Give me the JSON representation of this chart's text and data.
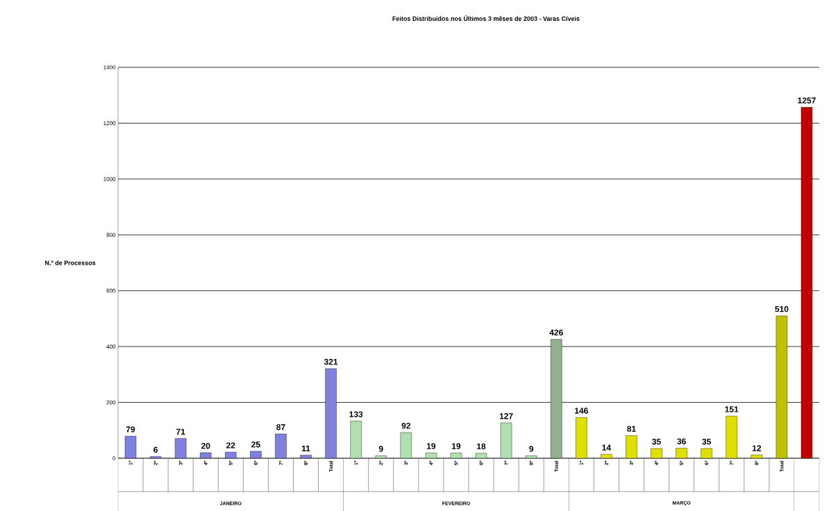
{
  "chart_data": {
    "type": "bar",
    "title": "Feitos Distribuidos nos Últimos 3 mêses de 2003 - Varas Cíveis",
    "ylabel": "N.º de Processos",
    "categories": [
      "1ª",
      "2ª",
      "3ª",
      "4ª",
      "5ª",
      "6ª",
      "7ª",
      "8ª",
      "Total",
      "1ª",
      "2ª",
      "3ª",
      "4ª",
      "5ª",
      "6ª",
      "7ª",
      "8ª",
      "Total",
      "1ª",
      "2ª",
      "3ª",
      "4ª",
      "5ª",
      "6ª",
      "7ª",
      "8ª",
      "Total",
      null
    ],
    "values": [
      79,
      6,
      71,
      20,
      22,
      25,
      87,
      11,
      321,
      133,
      9,
      92,
      19,
      19,
      18,
      127,
      9,
      426,
      146,
      14,
      81,
      35,
      36,
      35,
      151,
      12,
      510,
      1257
    ],
    "colors": [
      "#8080e0",
      "#8080e0",
      "#8080e0",
      "#8080e0",
      "#8080e0",
      "#8080e0",
      "#8080e0",
      "#8080e0",
      "#8080e0",
      "#b0e0b0",
      "#b0e0b0",
      "#b0e0b0",
      "#b0e0b0",
      "#b0e0b0",
      "#b0e0b0",
      "#b0e0b0",
      "#b0e0b0",
      "#90b090",
      "#e0e000",
      "#e0e000",
      "#e0e000",
      "#e0e000",
      "#e0e000",
      "#e0e000",
      "#e0e000",
      "#e0e000",
      "#c0c000",
      "#c00000"
    ],
    "ylim": [
      0,
      1400
    ],
    "yticks": [
      0,
      200,
      400,
      600,
      800,
      1000,
      1200,
      1400
    ],
    "grid": "y",
    "data_labels": true,
    "annotations": [
      "JANEIRO",
      "FEVEREIRO",
      "MARÇO"
    ]
  }
}
